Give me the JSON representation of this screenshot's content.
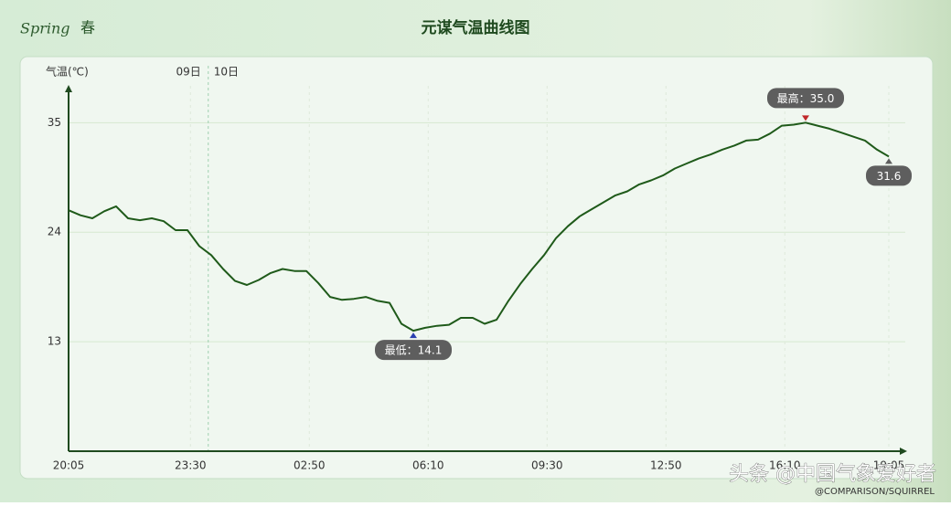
{
  "chart_data": {
    "type": "line",
    "brand": "Spring",
    "season": "春",
    "title": "元谋气温曲线图",
    "y_label": "气温(℃)",
    "day_labels": [
      "09日",
      "10日"
    ],
    "x": [
      "20:05",
      "20:25",
      "20:45",
      "21:05",
      "21:25",
      "21:45",
      "22:05",
      "22:25",
      "22:45",
      "23:05",
      "23:25",
      "23:45",
      "00:05",
      "00:25",
      "00:45",
      "01:05",
      "01:25",
      "01:45",
      "02:05",
      "02:25",
      "02:45",
      "03:05",
      "03:25",
      "03:45",
      "04:05",
      "04:25",
      "04:45",
      "05:05",
      "05:25",
      "05:45",
      "06:05",
      "06:25",
      "06:45",
      "07:05",
      "07:25",
      "07:45",
      "08:05",
      "08:25",
      "08:45",
      "09:05",
      "09:25",
      "09:45",
      "10:05",
      "10:25",
      "10:45",
      "11:05",
      "11:25",
      "11:45",
      "12:05",
      "12:25",
      "12:45",
      "13:05",
      "13:25",
      "13:45",
      "14:05",
      "14:25",
      "14:45",
      "15:05",
      "15:25",
      "15:45",
      "16:05",
      "16:25",
      "16:45",
      "17:05",
      "17:25",
      "17:45",
      "18:05",
      "18:25",
      "18:45",
      "19:05"
    ],
    "values": [
      26.2,
      25.7,
      25.4,
      26.1,
      26.6,
      25.4,
      25.2,
      25.4,
      25.1,
      24.2,
      24.2,
      22.6,
      21.7,
      20.3,
      19.1,
      18.7,
      19.2,
      19.9,
      20.3,
      20.1,
      20.1,
      18.9,
      17.5,
      17.2,
      17.3,
      17.5,
      17.1,
      16.9,
      14.8,
      14.1,
      14.4,
      14.6,
      14.7,
      15.4,
      15.4,
      14.8,
      15.2,
      17.1,
      18.8,
      20.3,
      21.7,
      23.4,
      24.6,
      25.6,
      26.3,
      27.0,
      27.7,
      28.1,
      28.8,
      29.2,
      29.7,
      30.4,
      30.9,
      31.4,
      31.8,
      32.3,
      32.7,
      33.2,
      33.3,
      33.9,
      34.7,
      34.8,
      35.0,
      34.7,
      34.4,
      34.0,
      33.6,
      33.2,
      32.3,
      31.6
    ],
    "value_labels": {
      "max": "最高：35.0",
      "min": "最低：14.1",
      "last": "31.6"
    },
    "color": "#1f5a1a",
    "xlim": [
      "20:05",
      "19:05"
    ],
    "xticks": [
      "20:05",
      "23:30",
      "02:50",
      "06:10",
      "09:30",
      "12:50",
      "16:10",
      "19:05"
    ],
    "ylim": [
      2,
      38.7
    ],
    "yticks": [
      13,
      24,
      35
    ],
    "grid": true,
    "watermark": "头条 @中国气象爱好者",
    "credit": "@COMPARISON/SQUIRREL"
  }
}
